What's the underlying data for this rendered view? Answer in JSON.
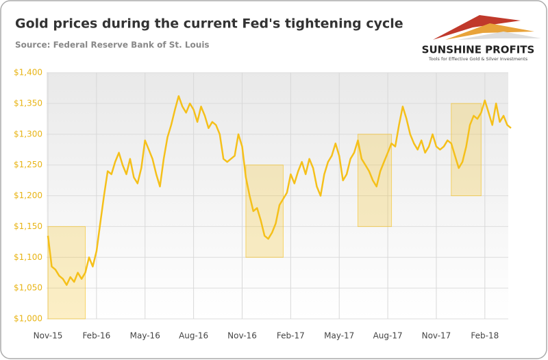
{
  "chart_data": {
    "type": "line",
    "title": "Gold prices during the current Fed's tightening cycle",
    "subtitle": "Source: Federal Reserve Bank of St. Louis",
    "logo": {
      "name": "SUNSHINE PROFITS",
      "tagline": "Tools for Effective Gold & Silver Investments"
    },
    "categories": [
      "Nov-15",
      null,
      null,
      null,
      null,
      null,
      null,
      null,
      null,
      null,
      null,
      null,
      null,
      "Feb-16",
      null,
      null,
      null,
      null,
      null,
      null,
      null,
      null,
      null,
      null,
      null,
      null,
      "May-16",
      null,
      null,
      null,
      null,
      null,
      null,
      null,
      null,
      null,
      null,
      null,
      null,
      "Aug-16",
      null,
      null,
      null,
      null,
      null,
      null,
      null,
      null,
      null,
      null,
      null,
      null,
      "Nov-16",
      null,
      null,
      null,
      null,
      null,
      null,
      null,
      null,
      null,
      null,
      null,
      null,
      "Feb-17",
      null,
      null,
      null,
      null,
      null,
      null,
      null,
      null,
      null,
      null,
      null,
      null,
      "May-17",
      null,
      null,
      null,
      null,
      null,
      null,
      null,
      null,
      null,
      null,
      null,
      null,
      "Aug-17",
      null,
      null,
      null,
      null,
      null,
      null,
      null,
      null,
      null,
      null,
      null,
      null,
      "Nov-17",
      null,
      null,
      null,
      null,
      null,
      null,
      null,
      null,
      null,
      null,
      null,
      null,
      "Feb-18",
      null,
      null,
      null,
      null,
      null,
      null,
      null
    ],
    "series": [
      {
        "name": "Gold price",
        "color": "#f5c01a",
        "values": [
          1135,
          1085,
          1080,
          1070,
          1065,
          1055,
          1068,
          1060,
          1075,
          1065,
          1075,
          1100,
          1085,
          1110,
          1155,
          1200,
          1240,
          1235,
          1255,
          1270,
          1250,
          1235,
          1260,
          1230,
          1220,
          1245,
          1290,
          1275,
          1260,
          1235,
          1215,
          1260,
          1295,
          1315,
          1340,
          1362,
          1345,
          1335,
          1350,
          1340,
          1320,
          1345,
          1330,
          1310,
          1320,
          1315,
          1300,
          1260,
          1255,
          1260,
          1265,
          1300,
          1280,
          1230,
          1200,
          1175,
          1180,
          1160,
          1135,
          1130,
          1140,
          1155,
          1185,
          1195,
          1205,
          1235,
          1220,
          1240,
          1255,
          1235,
          1260,
          1245,
          1215,
          1200,
          1235,
          1255,
          1265,
          1285,
          1265,
          1225,
          1235,
          1260,
          1270,
          1290,
          1260,
          1250,
          1240,
          1225,
          1215,
          1240,
          1255,
          1270,
          1285,
          1280,
          1315,
          1345,
          1325,
          1300,
          1285,
          1275,
          1290,
          1270,
          1280,
          1300,
          1280,
          1275,
          1280,
          1290,
          1285,
          1265,
          1245,
          1255,
          1280,
          1315,
          1330,
          1325,
          1335,
          1355,
          1335,
          1315,
          1350,
          1320,
          1330,
          1315,
          1310
        ]
      }
    ],
    "highlights": [
      {
        "x": [
          0,
          10
        ],
        "y": [
          1000,
          1150
        ]
      },
      {
        "x": [
          53,
          63
        ],
        "y": [
          1100,
          1250
        ]
      },
      {
        "x": [
          83,
          92
        ],
        "y": [
          1150,
          1300
        ]
      },
      {
        "x": [
          108,
          116
        ],
        "y": [
          1200,
          1350
        ]
      }
    ],
    "highlight_color": "#f5c01a",
    "ylim": [
      1000,
      1400
    ],
    "yticks": [
      {
        "value": 1000,
        "label": "$1,000"
      },
      {
        "value": 1050,
        "label": "$1,050"
      },
      {
        "value": 1100,
        "label": "$1,100"
      },
      {
        "value": 1150,
        "label": "$1,150"
      },
      {
        "value": 1200,
        "label": "$1,200"
      },
      {
        "value": 1250,
        "label": "$1,250"
      },
      {
        "value": 1300,
        "label": "$1,300"
      },
      {
        "value": 1350,
        "label": "$1,350"
      },
      {
        "value": 1400,
        "label": "$1,400"
      }
    ],
    "grid": true
  }
}
